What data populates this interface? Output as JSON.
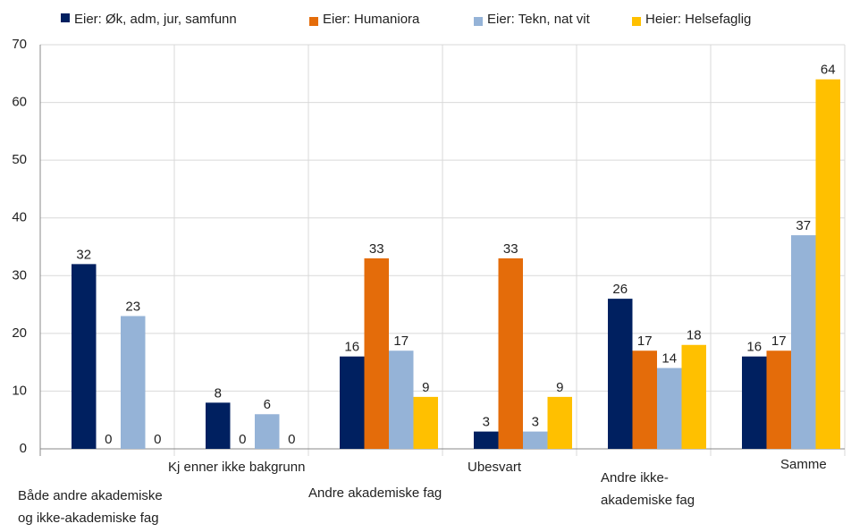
{
  "chart_data": {
    "type": "bar",
    "categories": [
      "Både andre akademiske og ikke-akademiske fag",
      "Kj enner ikke bakgrunn",
      "Andre akademiske fag",
      "Ubesvart",
      "Andre ikke-akademiske fag",
      "Samme"
    ],
    "series": [
      {
        "name": "Eier: Øk, adm, jur, samfunn",
        "color": "#002060",
        "values": [
          32,
          8,
          16,
          3,
          26,
          16
        ]
      },
      {
        "name": "Eier: Humaniora",
        "color": "#e46c0a",
        "values": [
          0,
          0,
          33,
          33,
          17,
          17
        ]
      },
      {
        "name": "Eier: Tekn, nat vit",
        "color": "#95b3d7",
        "values": [
          23,
          6,
          17,
          3,
          14,
          37
        ]
      },
      {
        "name": "Heier: Helsefaglig",
        "color": "#ffc000",
        "values": [
          0,
          0,
          9,
          9,
          18,
          64
        ]
      }
    ],
    "ylim": [
      0,
      70
    ],
    "yticks": [
      0,
      10,
      20,
      30,
      40,
      50,
      60,
      70
    ],
    "grid": true,
    "legend": "top"
  }
}
